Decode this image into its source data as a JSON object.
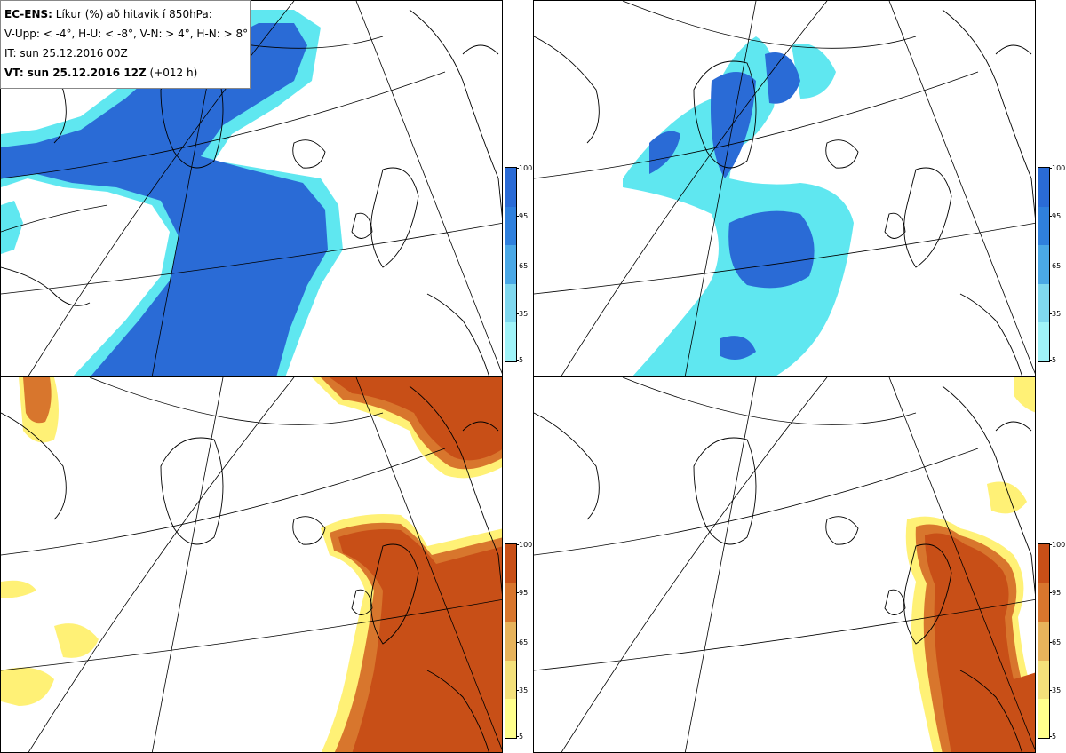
{
  "legend": {
    "model": "EC-ENS:",
    "description": "Líkur (%) að hitavik í 850hPa:",
    "thresholds": "V-Upp: < -4°, H-U: < -8°, V-N: > 4°, H-N: > 8°",
    "initial_time": "IT: sun 25.12.2016 00Z",
    "valid_label": "VT: sun 25.12.2016 12Z",
    "lead_time": "(+012 h)"
  },
  "colorbars": {
    "ticks": [
      "100",
      "95",
      "65",
      "35",
      "5"
    ],
    "cold_colors": [
      "#2a6bd6",
      "#2f80dd",
      "#4aa8e6",
      "#7fd8ef",
      "#9ff3f8"
    ],
    "warm_colors": [
      "#c84f17",
      "#d8762d",
      "#e7b35b",
      "#f4e07a",
      "#ffff8c"
    ]
  },
  "panels": [
    {
      "id": "top-left",
      "variable": "cold anomaly < -4°",
      "color": "#2a6bd6"
    },
    {
      "id": "top-right",
      "variable": "cold anomaly < -8°",
      "color": "#2a6bd6"
    },
    {
      "id": "bottom-left",
      "variable": "warm anomaly > 4°",
      "color": "#c84f17"
    },
    {
      "id": "bottom-right",
      "variable": "warm anomaly > 8°",
      "color": "#c84f17"
    }
  ]
}
